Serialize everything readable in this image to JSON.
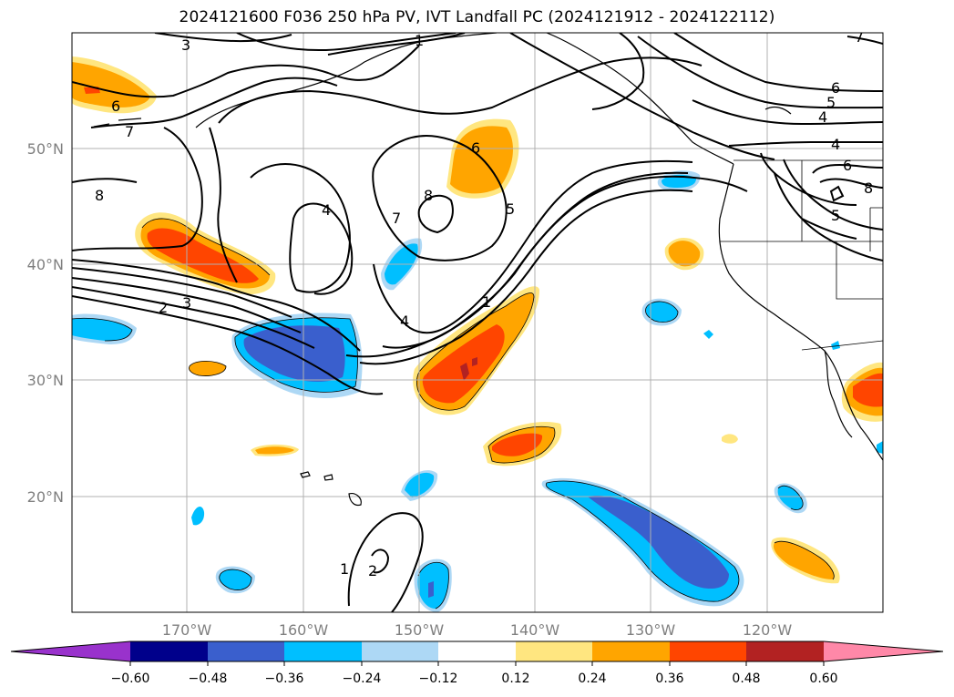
{
  "title": "2024121600 F036 250 hPa PV, IVT Landfall PC (2024121912 - 2024122112)",
  "map": {
    "lat_ticks": [
      "50°N",
      "40°N",
      "30°N",
      "20°N"
    ],
    "lon_ticks": [
      "170°W",
      "160°W",
      "150°W",
      "140°W",
      "130°W",
      "120°W"
    ],
    "contour_labels": [
      "3",
      "1",
      "6",
      "7",
      "6",
      "5",
      "4",
      "4",
      "6",
      "8",
      "5",
      "6",
      "8",
      "4",
      "7",
      "5",
      "2",
      "3",
      "1",
      "4",
      "1",
      "2",
      "8",
      "7"
    ]
  },
  "colorbar": {
    "tick_labels": [
      "−0.60",
      "−0.48",
      "−0.36",
      "−0.24",
      "−0.12",
      "0.12",
      "0.24",
      "0.36",
      "0.48",
      "0.60"
    ],
    "colors": [
      "#9932cc",
      "#00008b",
      "#3a5fcd",
      "#00bfff",
      "#add8f5",
      "#ffffff",
      "#ffe680",
      "#ffa500",
      "#ff4500",
      "#b22222",
      "#ff88a8"
    ]
  }
}
